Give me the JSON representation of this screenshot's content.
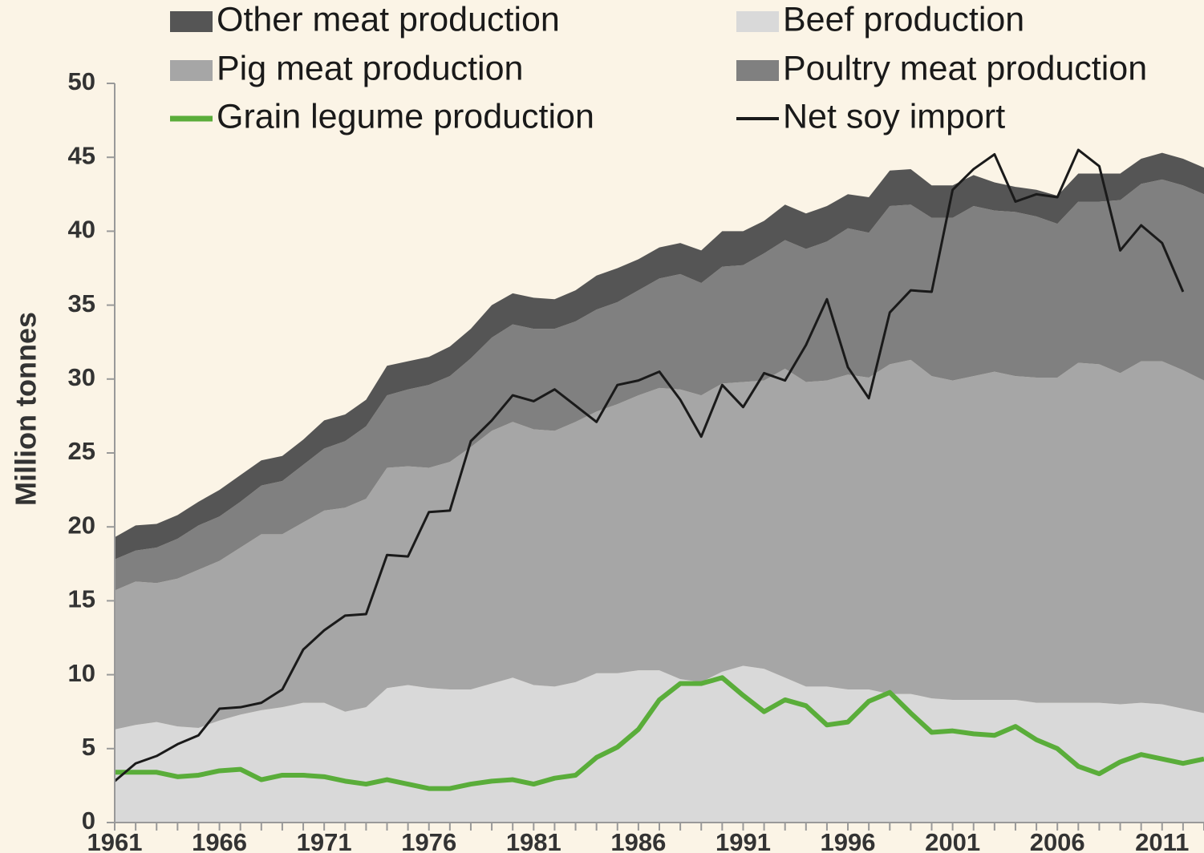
{
  "chart_data": {
    "type": "stacked_area",
    "ylabel": "Million tonnes",
    "x": [
      1961,
      1962,
      1963,
      1964,
      1965,
      1966,
      1967,
      1968,
      1969,
      1970,
      1971,
      1972,
      1973,
      1974,
      1975,
      1976,
      1977,
      1978,
      1979,
      1980,
      1981,
      1982,
      1983,
      1984,
      1985,
      1986,
      1987,
      1988,
      1989,
      1990,
      1991,
      1992,
      1993,
      1994,
      1995,
      1996,
      1997,
      1998,
      1999,
      2000,
      2001,
      2002,
      2003,
      2004,
      2005,
      2006,
      2007,
      2008,
      2009,
      2010,
      2011,
      2012,
      2013
    ],
    "xlim": [
      1961,
      2013
    ],
    "xticks": [
      1961,
      1966,
      1971,
      1976,
      1981,
      1986,
      1991,
      1996,
      2001,
      2006,
      2011
    ],
    "ylim": [
      0,
      50
    ],
    "yticks": [
      0,
      5,
      10,
      15,
      20,
      25,
      30,
      35,
      40,
      45,
      50
    ],
    "series": [
      {
        "name": "Beef production",
        "type": "area",
        "color": "#d9d9d9",
        "values": [
          6.3,
          6.6,
          6.8,
          6.5,
          6.4,
          6.9,
          7.3,
          7.6,
          7.8,
          8.1,
          8.1,
          7.5,
          7.8,
          9.1,
          9.3,
          9.1,
          9.0,
          9.0,
          9.4,
          9.8,
          9.3,
          9.2,
          9.5,
          10.1,
          10.1,
          10.3,
          10.3,
          9.7,
          9.5,
          10.2,
          10.6,
          10.4,
          9.8,
          9.2,
          9.2,
          9.0,
          9.0,
          8.7,
          8.7,
          8.4,
          8.3,
          8.3,
          8.3,
          8.3,
          8.1,
          8.1,
          8.1,
          8.1,
          8.0,
          8.1,
          8.0,
          7.7,
          7.4
        ]
      },
      {
        "name": "Pig meat production",
        "type": "area",
        "color": "#a6a6a6",
        "values": [
          9.4,
          9.7,
          9.4,
          10.0,
          10.7,
          10.8,
          11.3,
          11.9,
          11.7,
          12.2,
          13.0,
          13.8,
          14.1,
          14.9,
          14.8,
          14.9,
          15.4,
          16.4,
          17.1,
          17.3,
          17.3,
          17.3,
          17.6,
          17.7,
          18.2,
          18.6,
          19.1,
          19.6,
          19.4,
          19.5,
          19.2,
          19.5,
          20.9,
          20.6,
          20.7,
          21.3,
          21.1,
          22.3,
          22.6,
          21.8,
          21.6,
          21.9,
          22.2,
          21.9,
          22.0,
          22.0,
          23.0,
          22.9,
          22.4,
          23.1,
          23.2,
          22.9,
          22.5
        ]
      },
      {
        "name": "Poultry meat production",
        "type": "area",
        "color": "#808080",
        "values": [
          2.1,
          2.1,
          2.4,
          2.7,
          3.0,
          3.0,
          3.1,
          3.3,
          3.6,
          3.9,
          4.2,
          4.5,
          4.9,
          4.9,
          5.2,
          5.6,
          5.8,
          6.0,
          6.3,
          6.6,
          6.8,
          6.9,
          6.8,
          6.9,
          6.9,
          7.1,
          7.4,
          7.8,
          7.6,
          7.9,
          7.9,
          8.6,
          8.7,
          9.0,
          9.4,
          9.9,
          9.8,
          10.7,
          10.5,
          10.7,
          11.0,
          11.5,
          10.9,
          11.1,
          10.9,
          10.4,
          10.9,
          11.0,
          11.7,
          12.0,
          12.3,
          12.5,
          12.6
        ]
      },
      {
        "name": "Other meat production",
        "type": "area",
        "color": "#555555",
        "values": [
          1.5,
          1.7,
          1.6,
          1.6,
          1.6,
          1.8,
          1.8,
          1.7,
          1.7,
          1.7,
          1.9,
          1.8,
          1.8,
          2.0,
          1.9,
          1.9,
          2.0,
          2.0,
          2.2,
          2.1,
          2.1,
          2.0,
          2.1,
          2.3,
          2.3,
          2.1,
          2.1,
          2.1,
          2.2,
          2.4,
          2.3,
          2.2,
          2.4,
          2.4,
          2.4,
          2.3,
          2.4,
          2.4,
          2.4,
          2.2,
          2.2,
          2.1,
          1.9,
          1.7,
          1.8,
          1.9,
          1.9,
          1.9,
          1.8,
          1.7,
          1.8,
          1.8,
          1.8
        ]
      },
      {
        "name": "Grain legume production",
        "type": "line",
        "color": "#5aad3a",
        "width": 6,
        "values": [
          3.4,
          3.4,
          3.4,
          3.1,
          3.2,
          3.5,
          3.6,
          2.9,
          3.2,
          3.2,
          3.1,
          2.8,
          2.6,
          2.9,
          2.6,
          2.3,
          2.3,
          2.6,
          2.8,
          2.9,
          2.6,
          3.0,
          3.2,
          4.4,
          5.1,
          6.3,
          8.3,
          9.4,
          9.4,
          9.8,
          8.6,
          7.5,
          8.3,
          7.9,
          6.6,
          6.8,
          8.2,
          8.8,
          7.4,
          6.1,
          6.2,
          6.0,
          5.9,
          6.5,
          5.6,
          5.0,
          3.8,
          3.3,
          4.1,
          4.6,
          4.3,
          4.0,
          4.3
        ]
      },
      {
        "name": "Net soy import",
        "type": "line",
        "color": "#1a1a1a",
        "width": 3,
        "values": [
          2.8,
          4.0,
          4.5,
          5.3,
          5.9,
          7.7,
          7.8,
          8.1,
          9.0,
          11.7,
          13.0,
          14.0,
          14.1,
          18.1,
          18.0,
          21.0,
          21.1,
          25.8,
          27.2,
          28.9,
          28.5,
          29.3,
          28.2,
          27.1,
          29.6,
          29.9,
          30.5,
          28.6,
          26.1,
          29.6,
          28.1,
          30.4,
          29.9,
          32.3,
          35.4,
          30.8,
          28.7,
          34.5,
          36.0,
          35.9,
          42.8,
          44.2,
          45.2,
          42.0,
          42.5,
          42.3,
          45.5,
          44.4,
          38.7,
          40.4,
          39.2,
          35.9,
          null
        ]
      }
    ]
  }
}
